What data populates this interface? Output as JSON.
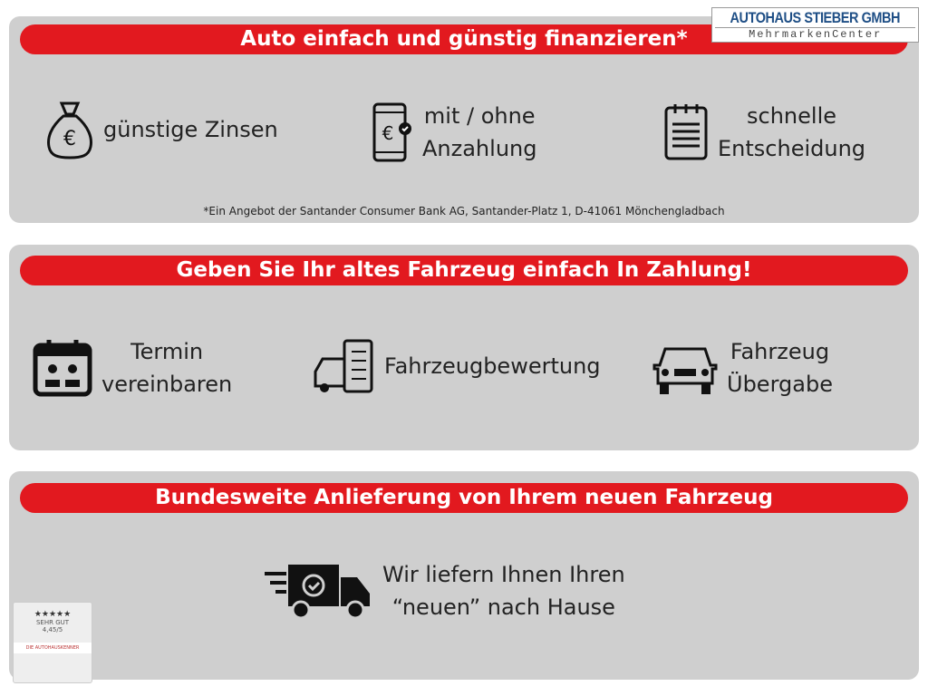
{
  "logo": {
    "line1": "AUTOHAUS STIEBER GMBH",
    "line2": "MehrmarkenCenter"
  },
  "sections": [
    {
      "title": "Auto einfach und günstig finanzieren*",
      "items": [
        {
          "icon": "money-bag-euro-icon",
          "label": "günstige Zinsen"
        },
        {
          "icon": "smartphone-euro-icon",
          "label": "mit / ohne\nAnzahlung"
        },
        {
          "icon": "notepad-icon",
          "label": "schnelle\nEntscheidung"
        }
      ],
      "footnote": "*Ein Angebot der Santander Consumer Bank AG, Santander-Platz 1, D-41061 Mönchengladbach"
    },
    {
      "title": "Geben Sie Ihr altes Fahrzeug einfach In Zahlung!",
      "items": [
        {
          "icon": "calendar-meeting-icon",
          "label": "Termin\nvereinbaren"
        },
        {
          "icon": "car-checklist-icon",
          "label": "Fahrzeugbewertung"
        },
        {
          "icon": "car-front-icon",
          "label": "Fahrzeug\nÜbergabe"
        }
      ]
    },
    {
      "title": "Bundesweite Anlieferung von Ihrem neuen Fahrzeug",
      "items": [
        {
          "icon": "delivery-truck-icon",
          "label": "Wir liefern Ihnen Ihren\n“neuen” nach Hause"
        }
      ]
    }
  ],
  "badge": {
    "stars": "★★★★★",
    "rating_text": "SEHR GUT",
    "score": "4,45/5",
    "brand": "DIE AUTOHAUSKENNER"
  },
  "colors": {
    "accent": "#e2191f",
    "panel": "#cfcfcf"
  }
}
